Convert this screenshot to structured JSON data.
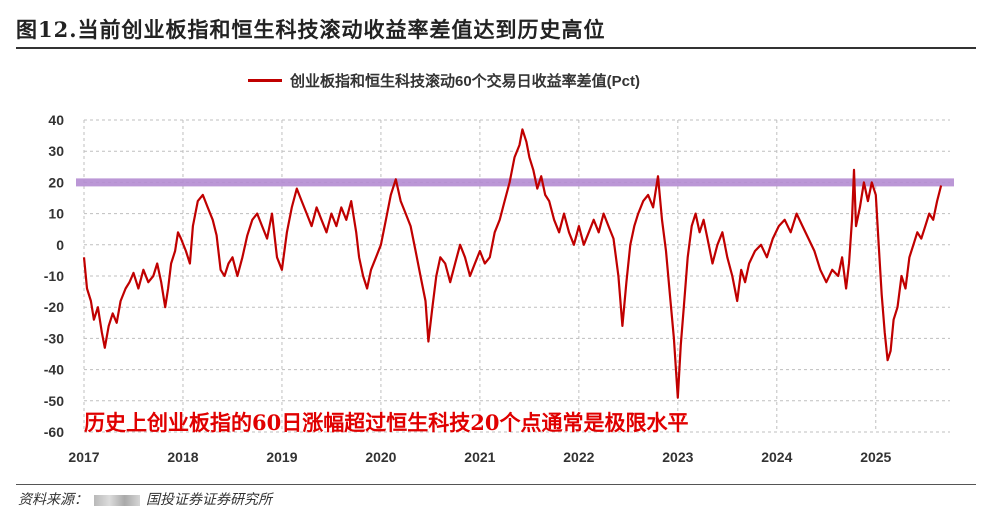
{
  "header": {
    "title": "图12.当前创业板指和恒生科技滚动收益率差值达到历史高位"
  },
  "footer": {
    "source_label": "资料来源：",
    "source_org": "国投证券证券研究所"
  },
  "colors": {
    "series": "#C00000",
    "band": "#B48CD2",
    "annotation": "#E00000",
    "grid": "#BFBFBF"
  },
  "chart_data": {
    "type": "line",
    "title": "",
    "xlabel": "",
    "ylabel": "",
    "ylim": [
      -60,
      40
    ],
    "yticks": [
      "40",
      "30",
      "20",
      "10",
      "0",
      "-10",
      "-20",
      "-30",
      "-40",
      "-50",
      "-60"
    ],
    "xticks": [
      "2017",
      "2018",
      "2019",
      "2020",
      "2021",
      "2022",
      "2023",
      "2024",
      "2025"
    ],
    "xlim": [
      2017.0,
      2025.75
    ],
    "grid": true,
    "legend": "top-center",
    "reference_band": {
      "value": 20
    },
    "annotation": {
      "text": "历史上创业板指的60日涨幅超过恒生科技20个点通常是极限水平"
    },
    "series": [
      {
        "name": "创业板指和恒生科技滚动60个交易日收益率差值(Pct)",
        "points": [
          [
            2017.0,
            -4
          ],
          [
            2017.03,
            -14
          ],
          [
            2017.07,
            -18
          ],
          [
            2017.1,
            -24
          ],
          [
            2017.14,
            -20
          ],
          [
            2017.18,
            -28
          ],
          [
            2017.21,
            -33
          ],
          [
            2017.25,
            -26
          ],
          [
            2017.29,
            -22
          ],
          [
            2017.33,
            -25
          ],
          [
            2017.37,
            -18
          ],
          [
            2017.42,
            -14
          ],
          [
            2017.46,
            -12
          ],
          [
            2017.5,
            -9
          ],
          [
            2017.55,
            -14
          ],
          [
            2017.6,
            -8
          ],
          [
            2017.65,
            -12
          ],
          [
            2017.7,
            -10
          ],
          [
            2017.74,
            -6
          ],
          [
            2017.78,
            -12
          ],
          [
            2017.82,
            -20
          ],
          [
            2017.85,
            -14
          ],
          [
            2017.88,
            -6
          ],
          [
            2017.92,
            -2
          ],
          [
            2017.95,
            4
          ],
          [
            2017.98,
            2
          ],
          [
            2018.03,
            -2
          ],
          [
            2018.07,
            -6
          ],
          [
            2018.1,
            6
          ],
          [
            2018.15,
            14
          ],
          [
            2018.2,
            16
          ],
          [
            2018.25,
            12
          ],
          [
            2018.3,
            8
          ],
          [
            2018.34,
            3
          ],
          [
            2018.38,
            -8
          ],
          [
            2018.42,
            -10
          ],
          [
            2018.46,
            -6
          ],
          [
            2018.5,
            -4
          ],
          [
            2018.55,
            -10
          ],
          [
            2018.6,
            -4
          ],
          [
            2018.65,
            3
          ],
          [
            2018.7,
            8
          ],
          [
            2018.75,
            10
          ],
          [
            2018.8,
            6
          ],
          [
            2018.85,
            2
          ],
          [
            2018.9,
            10
          ],
          [
            2018.95,
            -4
          ],
          [
            2019.0,
            -8
          ],
          [
            2019.05,
            4
          ],
          [
            2019.1,
            12
          ],
          [
            2019.15,
            18
          ],
          [
            2019.2,
            14
          ],
          [
            2019.25,
            10
          ],
          [
            2019.3,
            6
          ],
          [
            2019.35,
            12
          ],
          [
            2019.4,
            8
          ],
          [
            2019.45,
            4
          ],
          [
            2019.5,
            10
          ],
          [
            2019.55,
            6
          ],
          [
            2019.6,
            12
          ],
          [
            2019.65,
            8
          ],
          [
            2019.7,
            14
          ],
          [
            2019.75,
            4
          ],
          [
            2019.78,
            -4
          ],
          [
            2019.82,
            -10
          ],
          [
            2019.86,
            -14
          ],
          [
            2019.9,
            -8
          ],
          [
            2019.95,
            -4
          ],
          [
            2020.0,
            0
          ],
          [
            2020.05,
            8
          ],
          [
            2020.1,
            16
          ],
          [
            2020.15,
            21
          ],
          [
            2020.2,
            14
          ],
          [
            2020.25,
            10
          ],
          [
            2020.3,
            6
          ],
          [
            2020.35,
            -2
          ],
          [
            2020.4,
            -10
          ],
          [
            2020.45,
            -18
          ],
          [
            2020.48,
            -31
          ],
          [
            2020.52,
            -20
          ],
          [
            2020.56,
            -10
          ],
          [
            2020.6,
            -4
          ],
          [
            2020.65,
            -6
          ],
          [
            2020.7,
            -12
          ],
          [
            2020.75,
            -6
          ],
          [
            2020.8,
            0
          ],
          [
            2020.85,
            -4
          ],
          [
            2020.9,
            -10
          ],
          [
            2020.95,
            -6
          ],
          [
            2021.0,
            -2
          ],
          [
            2021.05,
            -6
          ],
          [
            2021.1,
            -4
          ],
          [
            2021.15,
            4
          ],
          [
            2021.2,
            8
          ],
          [
            2021.25,
            14
          ],
          [
            2021.3,
            20
          ],
          [
            2021.35,
            28
          ],
          [
            2021.4,
            32
          ],
          [
            2021.43,
            37
          ],
          [
            2021.47,
            33
          ],
          [
            2021.5,
            28
          ],
          [
            2021.54,
            24
          ],
          [
            2021.58,
            18
          ],
          [
            2021.62,
            22
          ],
          [
            2021.66,
            16
          ],
          [
            2021.7,
            14
          ],
          [
            2021.75,
            8
          ],
          [
            2021.8,
            4
          ],
          [
            2021.85,
            10
          ],
          [
            2021.9,
            4
          ],
          [
            2021.95,
            0
          ],
          [
            2022.0,
            6
          ],
          [
            2022.05,
            0
          ],
          [
            2022.1,
            4
          ],
          [
            2022.15,
            8
          ],
          [
            2022.2,
            4
          ],
          [
            2022.25,
            10
          ],
          [
            2022.3,
            6
          ],
          [
            2022.35,
            2
          ],
          [
            2022.4,
            -10
          ],
          [
            2022.44,
            -26
          ],
          [
            2022.48,
            -12
          ],
          [
            2022.52,
            0
          ],
          [
            2022.56,
            6
          ],
          [
            2022.6,
            10
          ],
          [
            2022.65,
            14
          ],
          [
            2022.7,
            16
          ],
          [
            2022.75,
            12
          ],
          [
            2022.8,
            22
          ],
          [
            2022.84,
            8
          ],
          [
            2022.88,
            -2
          ],
          [
            2022.92,
            -16
          ],
          [
            2022.96,
            -30
          ],
          [
            2023.0,
            -49
          ],
          [
            2023.03,
            -32
          ],
          [
            2023.06,
            -20
          ],
          [
            2023.1,
            -4
          ],
          [
            2023.14,
            6
          ],
          [
            2023.18,
            10
          ],
          [
            2023.22,
            4
          ],
          [
            2023.26,
            8
          ],
          [
            2023.3,
            2
          ],
          [
            2023.35,
            -6
          ],
          [
            2023.4,
            0
          ],
          [
            2023.45,
            4
          ],
          [
            2023.5,
            -4
          ],
          [
            2023.55,
            -10
          ],
          [
            2023.6,
            -18
          ],
          [
            2023.64,
            -8
          ],
          [
            2023.68,
            -12
          ],
          [
            2023.72,
            -6
          ],
          [
            2023.78,
            -2
          ],
          [
            2023.84,
            0
          ],
          [
            2023.9,
            -4
          ],
          [
            2023.96,
            2
          ],
          [
            2024.02,
            6
          ],
          [
            2024.08,
            8
          ],
          [
            2024.14,
            4
          ],
          [
            2024.2,
            10
          ],
          [
            2024.26,
            6
          ],
          [
            2024.32,
            2
          ],
          [
            2024.38,
            -2
          ],
          [
            2024.44,
            -8
          ],
          [
            2024.5,
            -12
          ],
          [
            2024.56,
            -8
          ],
          [
            2024.62,
            -10
          ],
          [
            2024.66,
            -4
          ],
          [
            2024.7,
            -14
          ],
          [
            2024.73,
            -6
          ],
          [
            2024.76,
            8
          ],
          [
            2024.78,
            24
          ],
          [
            2024.8,
            6
          ],
          [
            2024.84,
            12
          ],
          [
            2024.88,
            20
          ],
          [
            2024.92,
            14
          ],
          [
            2024.96,
            20
          ],
          [
            2025.0,
            16
          ],
          [
            2025.03,
            0
          ],
          [
            2025.06,
            -16
          ],
          [
            2025.09,
            -28
          ],
          [
            2025.12,
            -37
          ],
          [
            2025.15,
            -34
          ],
          [
            2025.18,
            -24
          ],
          [
            2025.22,
            -20
          ],
          [
            2025.26,
            -10
          ],
          [
            2025.3,
            -14
          ],
          [
            2025.34,
            -4
          ],
          [
            2025.38,
            0
          ],
          [
            2025.42,
            4
          ],
          [
            2025.46,
            2
          ],
          [
            2025.5,
            6
          ],
          [
            2025.54,
            10
          ],
          [
            2025.58,
            8
          ],
          [
            2025.62,
            14
          ],
          [
            2025.66,
            19
          ]
        ]
      }
    ]
  }
}
